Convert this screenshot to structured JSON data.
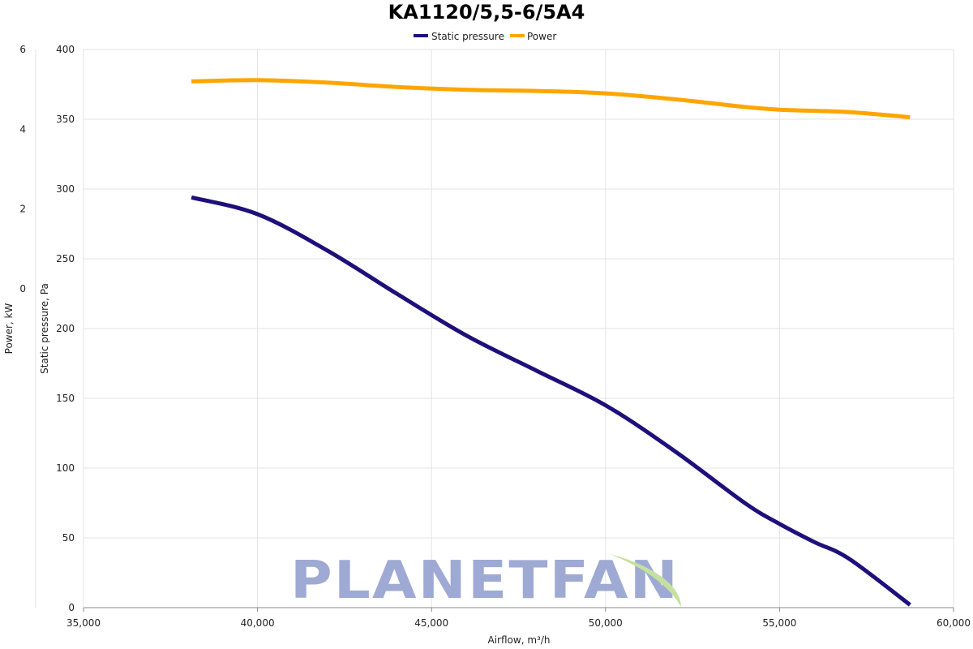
{
  "chart_data": {
    "type": "line",
    "title": "KA1120/5,5-6/5A4",
    "xlabel": "Airflow, m³/h",
    "ylabel_left_outer": "Power, kW",
    "ylabel_left_inner": "Static pressure, Pa",
    "xlim": [
      35000,
      60000
    ],
    "xticks": [
      35000,
      40000,
      45000,
      50000,
      55000,
      60000
    ],
    "xtick_labels": [
      "35,000",
      "40,000",
      "45,000",
      "50,000",
      "55,000",
      "60,000"
    ],
    "pressure_axis": {
      "ylim": [
        0,
        400
      ],
      "ticks": [
        0,
        50,
        100,
        150,
        200,
        250,
        300,
        350,
        400
      ],
      "tick_labels": [
        "0",
        "50",
        "100",
        "150",
        "200",
        "250",
        "300",
        "350",
        "400"
      ]
    },
    "power_axis": {
      "ylim": [
        -8,
        6
      ],
      "ticks": [
        0,
        2,
        4,
        6
      ],
      "tick_labels": [
        "0",
        "2",
        "4",
        "6"
      ]
    },
    "grid": true,
    "legend": {
      "position": "top-center"
    },
    "series": [
      {
        "name": "Static pressure",
        "axis": "pressure",
        "color": "#1f0f7a",
        "x": [
          38100,
          40000,
          42000,
          44000,
          46000,
          48000,
          50000,
          52000,
          54000,
          55000,
          56000,
          57000,
          58750
        ],
        "y": [
          294,
          282,
          256,
          225,
          195,
          170,
          145,
          112,
          75,
          60,
          47,
          35,
          2
        ]
      },
      {
        "name": "Power",
        "axis": "power",
        "color": "#ffa500",
        "x": [
          38100,
          40000,
          42000,
          44000,
          46000,
          48000,
          50000,
          52000,
          54000,
          55000,
          57000,
          58750
        ],
        "y": [
          5.2,
          5.23,
          5.17,
          5.06,
          4.99,
          4.96,
          4.9,
          4.75,
          4.56,
          4.49,
          4.43,
          4.3
        ]
      }
    ]
  },
  "watermark": {
    "text": "PLANETFAN",
    "color": "#8e9ccc",
    "leaf_color": "#c6e0a0"
  }
}
